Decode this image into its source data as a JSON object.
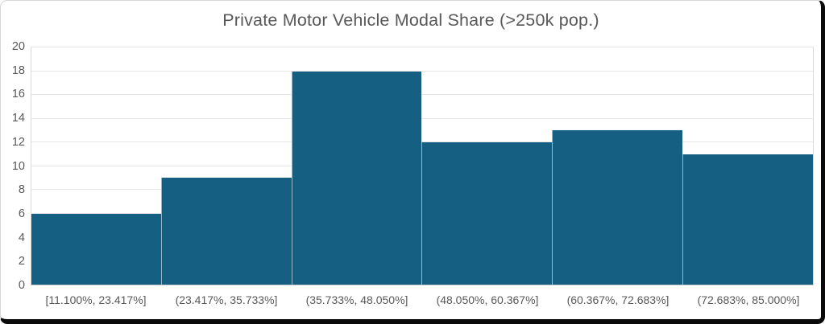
{
  "chart_data": {
    "type": "bar",
    "chart_kind": "histogram",
    "title": "Private Motor Vehicle Modal Share (>250k pop.)",
    "categories": [
      "[11.100%, 23.417%]",
      "(23.417%, 35.733%]",
      "(35.733%, 48.050%]",
      "(48.050%, 60.367%]",
      "(60.367%, 72.683%]",
      "(72.683%, 85.000%]"
    ],
    "values": [
      6,
      9,
      18,
      12,
      13,
      11
    ],
    "xlabel": "",
    "ylabel": "",
    "ylim": [
      0,
      20
    ],
    "ytick_step": 2,
    "grid": "horizontal",
    "legend": "none",
    "colors": {
      "bar": "#156082",
      "bar_separator": "rgba(255,255,255,0.55)",
      "gridline": "#e6e6e6",
      "axis_text": "#595959",
      "title_text": "#595959",
      "plot_border": "#d9d9d9",
      "frame_border": "#0a0a0a"
    }
  }
}
